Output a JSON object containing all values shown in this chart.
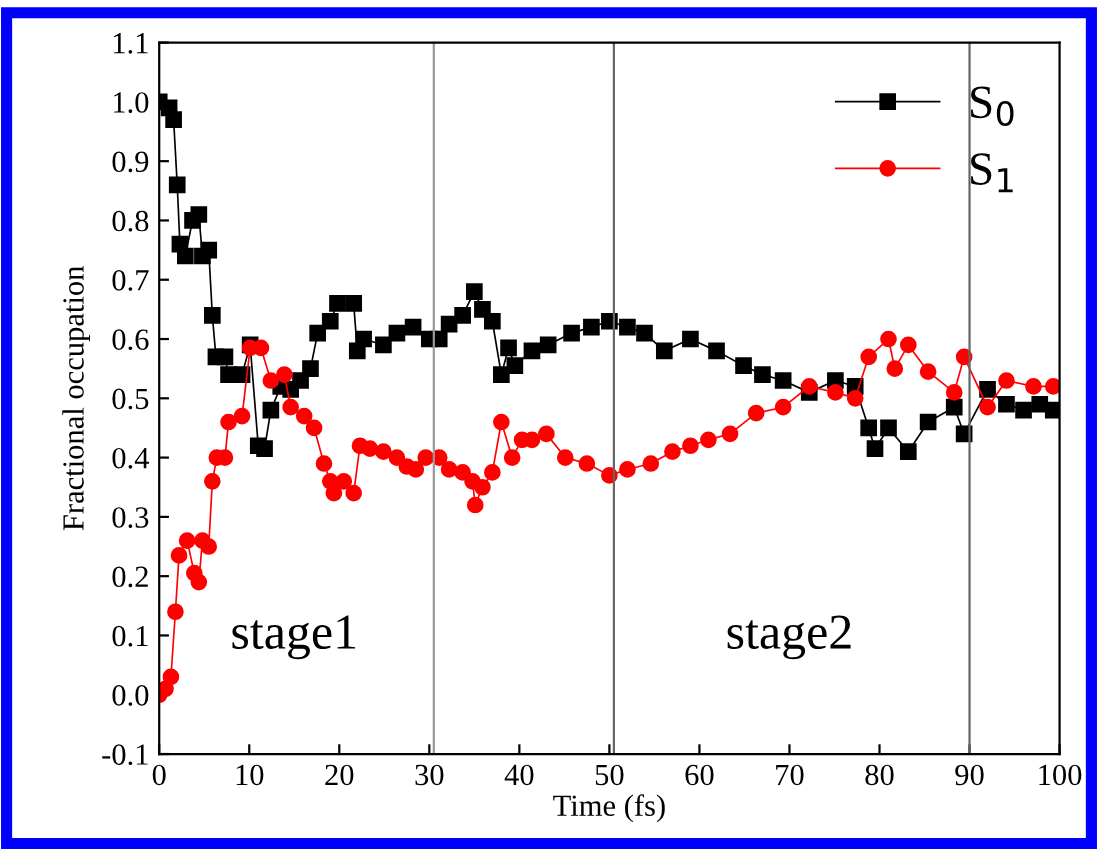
{
  "chart_data": {
    "type": "line",
    "xlabel": "Time (fs)",
    "ylabel": "Fractional occupation",
    "xlim": [
      0,
      100
    ],
    "xticks": [
      0,
      10,
      20,
      30,
      40,
      50,
      60,
      70,
      80,
      90,
      100
    ],
    "ylim": [
      -0.1,
      1.1
    ],
    "yticks": [
      {
        "value": -0.1,
        "label": "-0.1"
      },
      {
        "value": 0.0,
        "label": "0.0"
      },
      {
        "value": 0.1,
        "label": "0.1"
      },
      {
        "value": 0.2,
        "label": "0.2"
      },
      {
        "value": 0.3,
        "label": "0.3"
      },
      {
        "value": 0.4,
        "label": "0.4"
      },
      {
        "value": 0.5,
        "label": "0.5"
      },
      {
        "value": 0.6,
        "label": "0.6"
      },
      {
        "value": 0.7,
        "label": "0.7"
      },
      {
        "value": 0.8,
        "label": "0.8"
      },
      {
        "value": 0.9,
        "label": "0.9"
      },
      {
        "value": 1.0,
        "label": "1.0"
      },
      {
        "value": 1.1,
        "label": "1.1"
      }
    ],
    "legend": "top right",
    "grid": false,
    "series": [
      {
        "name": "S$_{0}$",
        "color": "#000000",
        "marker": "square",
        "x": [
          0,
          1.1,
          1.6,
          2.0,
          2.3,
          2.9,
          3.7,
          4.4,
          4.8,
          5.5,
          5.9,
          6.3,
          7.3,
          7.7,
          9.2,
          10.1,
          11.0,
          11.7,
          12.4,
          13.5,
          14.6,
          15.7,
          16.8,
          17.6,
          19.0,
          19.8,
          21.6,
          22.0,
          22.7,
          24.9,
          26.4,
          28.2,
          30.0,
          31.1,
          32.2,
          33.7,
          35.0,
          35.9,
          37.0,
          38.0,
          38.8,
          39.5,
          41.4,
          43.2,
          45.8,
          48.0,
          50.0,
          52.0,
          53.9,
          56.1,
          59.0,
          61.9,
          64.9,
          67.0,
          69.3,
          72.2,
          75.1,
          77.3,
          78.8,
          79.5,
          81.0,
          83.2,
          85.4,
          88.3,
          89.4,
          92.0,
          94.1,
          96.0,
          97.8,
          99.3
        ],
        "values": [
          1.0,
          0.99,
          0.97,
          0.86,
          0.76,
          0.74,
          0.8,
          0.81,
          0.74,
          0.75,
          0.64,
          0.57,
          0.57,
          0.54,
          0.54,
          0.59,
          0.42,
          0.415,
          0.48,
          0.52,
          0.515,
          0.53,
          0.55,
          0.61,
          0.63,
          0.66,
          0.66,
          0.58,
          0.6,
          0.59,
          0.61,
          0.62,
          0.6,
          0.6,
          0.625,
          0.64,
          0.68,
          0.65,
          0.63,
          0.54,
          0.585,
          0.555,
          0.58,
          0.59,
          0.61,
          0.62,
          0.63,
          0.62,
          0.61,
          0.58,
          0.6,
          0.58,
          0.555,
          0.54,
          0.53,
          0.51,
          0.53,
          0.52,
          0.45,
          0.415,
          0.45,
          0.41,
          0.46,
          0.485,
          0.44,
          0.515,
          0.49,
          0.48,
          0.49,
          0.48
        ]
      },
      {
        "name": "S$_{1}$",
        "color": "#ff0000",
        "marker": "circle",
        "x": [
          0,
          0.7,
          1.3,
          1.8,
          2.2,
          3.1,
          3.9,
          4.4,
          4.8,
          5.5,
          5.9,
          6.4,
          7.3,
          7.7,
          9.2,
          10.1,
          11.3,
          12.4,
          13.9,
          14.6,
          16.1,
          17.2,
          18.3,
          19.0,
          19.4,
          20.5,
          21.6,
          22.3,
          23.4,
          24.9,
          26.4,
          27.5,
          28.5,
          29.6,
          31.1,
          32.2,
          33.7,
          34.8,
          35.1,
          35.9,
          37.0,
          38.0,
          39.2,
          40.3,
          41.4,
          43.0,
          45.1,
          47.5,
          50.0,
          52.0,
          54.6,
          57.0,
          59.0,
          61.0,
          63.4,
          66.3,
          69.3,
          72.2,
          75.1,
          77.3,
          78.8,
          81.0,
          81.7,
          83.2,
          85.4,
          88.3,
          89.4,
          92.0,
          94.1,
          97.1,
          99.3
        ],
        "values": [
          0.0,
          0.01,
          0.03,
          0.14,
          0.235,
          0.26,
          0.205,
          0.19,
          0.26,
          0.25,
          0.36,
          0.4,
          0.4,
          0.46,
          0.47,
          0.585,
          0.585,
          0.53,
          0.54,
          0.485,
          0.47,
          0.45,
          0.39,
          0.36,
          0.34,
          0.36,
          0.34,
          0.42,
          0.415,
          0.41,
          0.4,
          0.385,
          0.38,
          0.4,
          0.4,
          0.38,
          0.375,
          0.36,
          0.32,
          0.35,
          0.375,
          0.46,
          0.4,
          0.43,
          0.43,
          0.44,
          0.4,
          0.39,
          0.37,
          0.38,
          0.39,
          0.41,
          0.42,
          0.43,
          0.44,
          0.475,
          0.485,
          0.52,
          0.51,
          0.5,
          0.57,
          0.6,
          0.55,
          0.59,
          0.545,
          0.51,
          0.57,
          0.485,
          0.53,
          0.52,
          0.52
        ]
      }
    ],
    "ref_lines": [
      {
        "axis": "x",
        "value": 30.5,
        "color": "#999999"
      },
      {
        "axis": "x",
        "value": 50.5,
        "color": "#666666"
      },
      {
        "axis": "x",
        "value": 90,
        "color": "#666666"
      }
    ],
    "annotations": [
      "stage1",
      "stage2"
    ]
  }
}
